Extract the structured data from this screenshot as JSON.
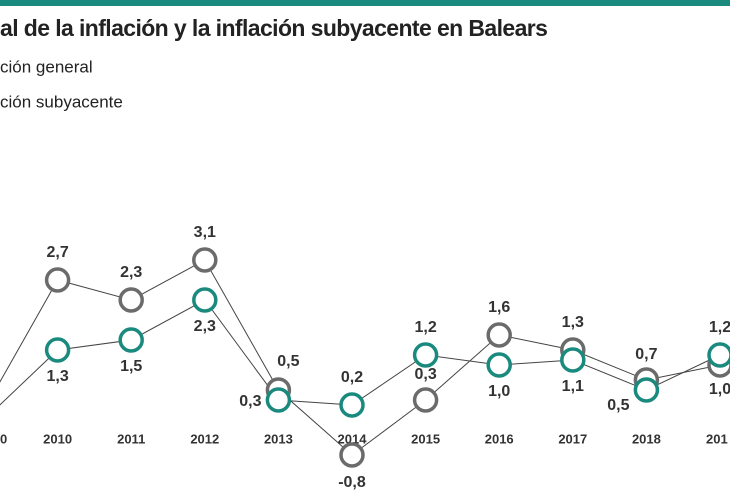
{
  "chart_data": {
    "type": "line",
    "title": "al de la inflación y la inflación subyacente en Balears",
    "categories": [
      "0",
      "2010",
      "2011",
      "2012",
      "2013",
      "2014",
      "2015",
      "2016",
      "2017",
      "2018",
      "201"
    ],
    "series": [
      {
        "name": "ción general",
        "color": "#6b6b6b",
        "values": [
          0.1,
          2.7,
          2.3,
          3.1,
          0.5,
          -0.8,
          0.3,
          1.6,
          1.3,
          0.7,
          1.0
        ],
        "value_labels": [
          null,
          "2,7",
          "2,3",
          "3,1",
          "0,5",
          "-0,8",
          "0,3",
          "1,6",
          "1,3",
          "0,7",
          "1,0"
        ]
      },
      {
        "name": "ción subyacente",
        "color": "#1b8a7e",
        "values": [
          -0.1,
          1.3,
          1.5,
          2.3,
          0.3,
          0.2,
          1.2,
          1.0,
          1.1,
          0.5,
          1.2
        ],
        "value_labels": [
          null,
          "1,3",
          "1,5",
          "2,3",
          "0,3",
          "0,2",
          "1,2",
          "1,0",
          "1,1",
          "0,5",
          "1,2"
        ]
      }
    ],
    "ylim": [
      -1,
      4
    ]
  }
}
